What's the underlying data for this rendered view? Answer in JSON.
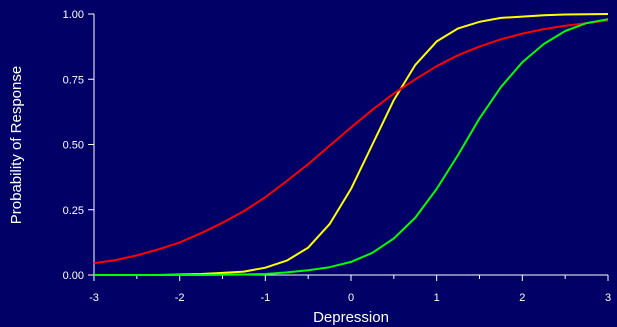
{
  "chart_data": {
    "type": "line",
    "xlabel": "Depression",
    "ylabel": "Probability of Response",
    "xlim": [
      -3,
      3
    ],
    "ylim": [
      0,
      1
    ],
    "x_ticks": [
      -3,
      -2,
      -1,
      0,
      1,
      2,
      3
    ],
    "x_tick_labels": [
      "-3",
      "-2",
      "-1",
      "0",
      "1",
      "2",
      "3"
    ],
    "y_ticks": [
      0,
      0.25,
      0.5,
      0.75,
      1
    ],
    "y_tick_labels": [
      "0.00",
      "0.25",
      "0.50",
      "0.75",
      "1.00"
    ],
    "grid": false,
    "legend": "none",
    "x": [
      -3.0,
      -2.75,
      -2.5,
      -2.25,
      -2.0,
      -1.75,
      -1.5,
      -1.25,
      -1.0,
      -0.75,
      -0.5,
      -0.25,
      0.0,
      0.25,
      0.5,
      0.75,
      1.0,
      1.25,
      1.5,
      1.75,
      2.0,
      2.25,
      2.5,
      2.75,
      3.0
    ],
    "series": [
      {
        "color": "#ffff00",
        "values": [
          0.0,
          0.0,
          0.0,
          0.0,
          0.002,
          0.004,
          0.008,
          0.013,
          0.028,
          0.055,
          0.105,
          0.195,
          0.33,
          0.5,
          0.67,
          0.805,
          0.895,
          0.945,
          0.97,
          0.985,
          0.99,
          0.995,
          0.998,
          0.999,
          1.0
        ]
      },
      {
        "color": "#ff0000",
        "values": [
          0.045,
          0.057,
          0.075,
          0.098,
          0.125,
          0.16,
          0.2,
          0.245,
          0.298,
          0.36,
          0.425,
          0.495,
          0.565,
          0.633,
          0.695,
          0.75,
          0.8,
          0.842,
          0.875,
          0.903,
          0.925,
          0.942,
          0.955,
          0.965,
          0.975
        ]
      },
      {
        "color": "#00ff00",
        "values": [
          0.0,
          0.0,
          0.0,
          0.0,
          0.0,
          0.0,
          0.001,
          0.002,
          0.004,
          0.01,
          0.018,
          0.03,
          0.05,
          0.085,
          0.14,
          0.22,
          0.33,
          0.46,
          0.6,
          0.72,
          0.815,
          0.885,
          0.935,
          0.965,
          0.98
        ]
      }
    ]
  }
}
